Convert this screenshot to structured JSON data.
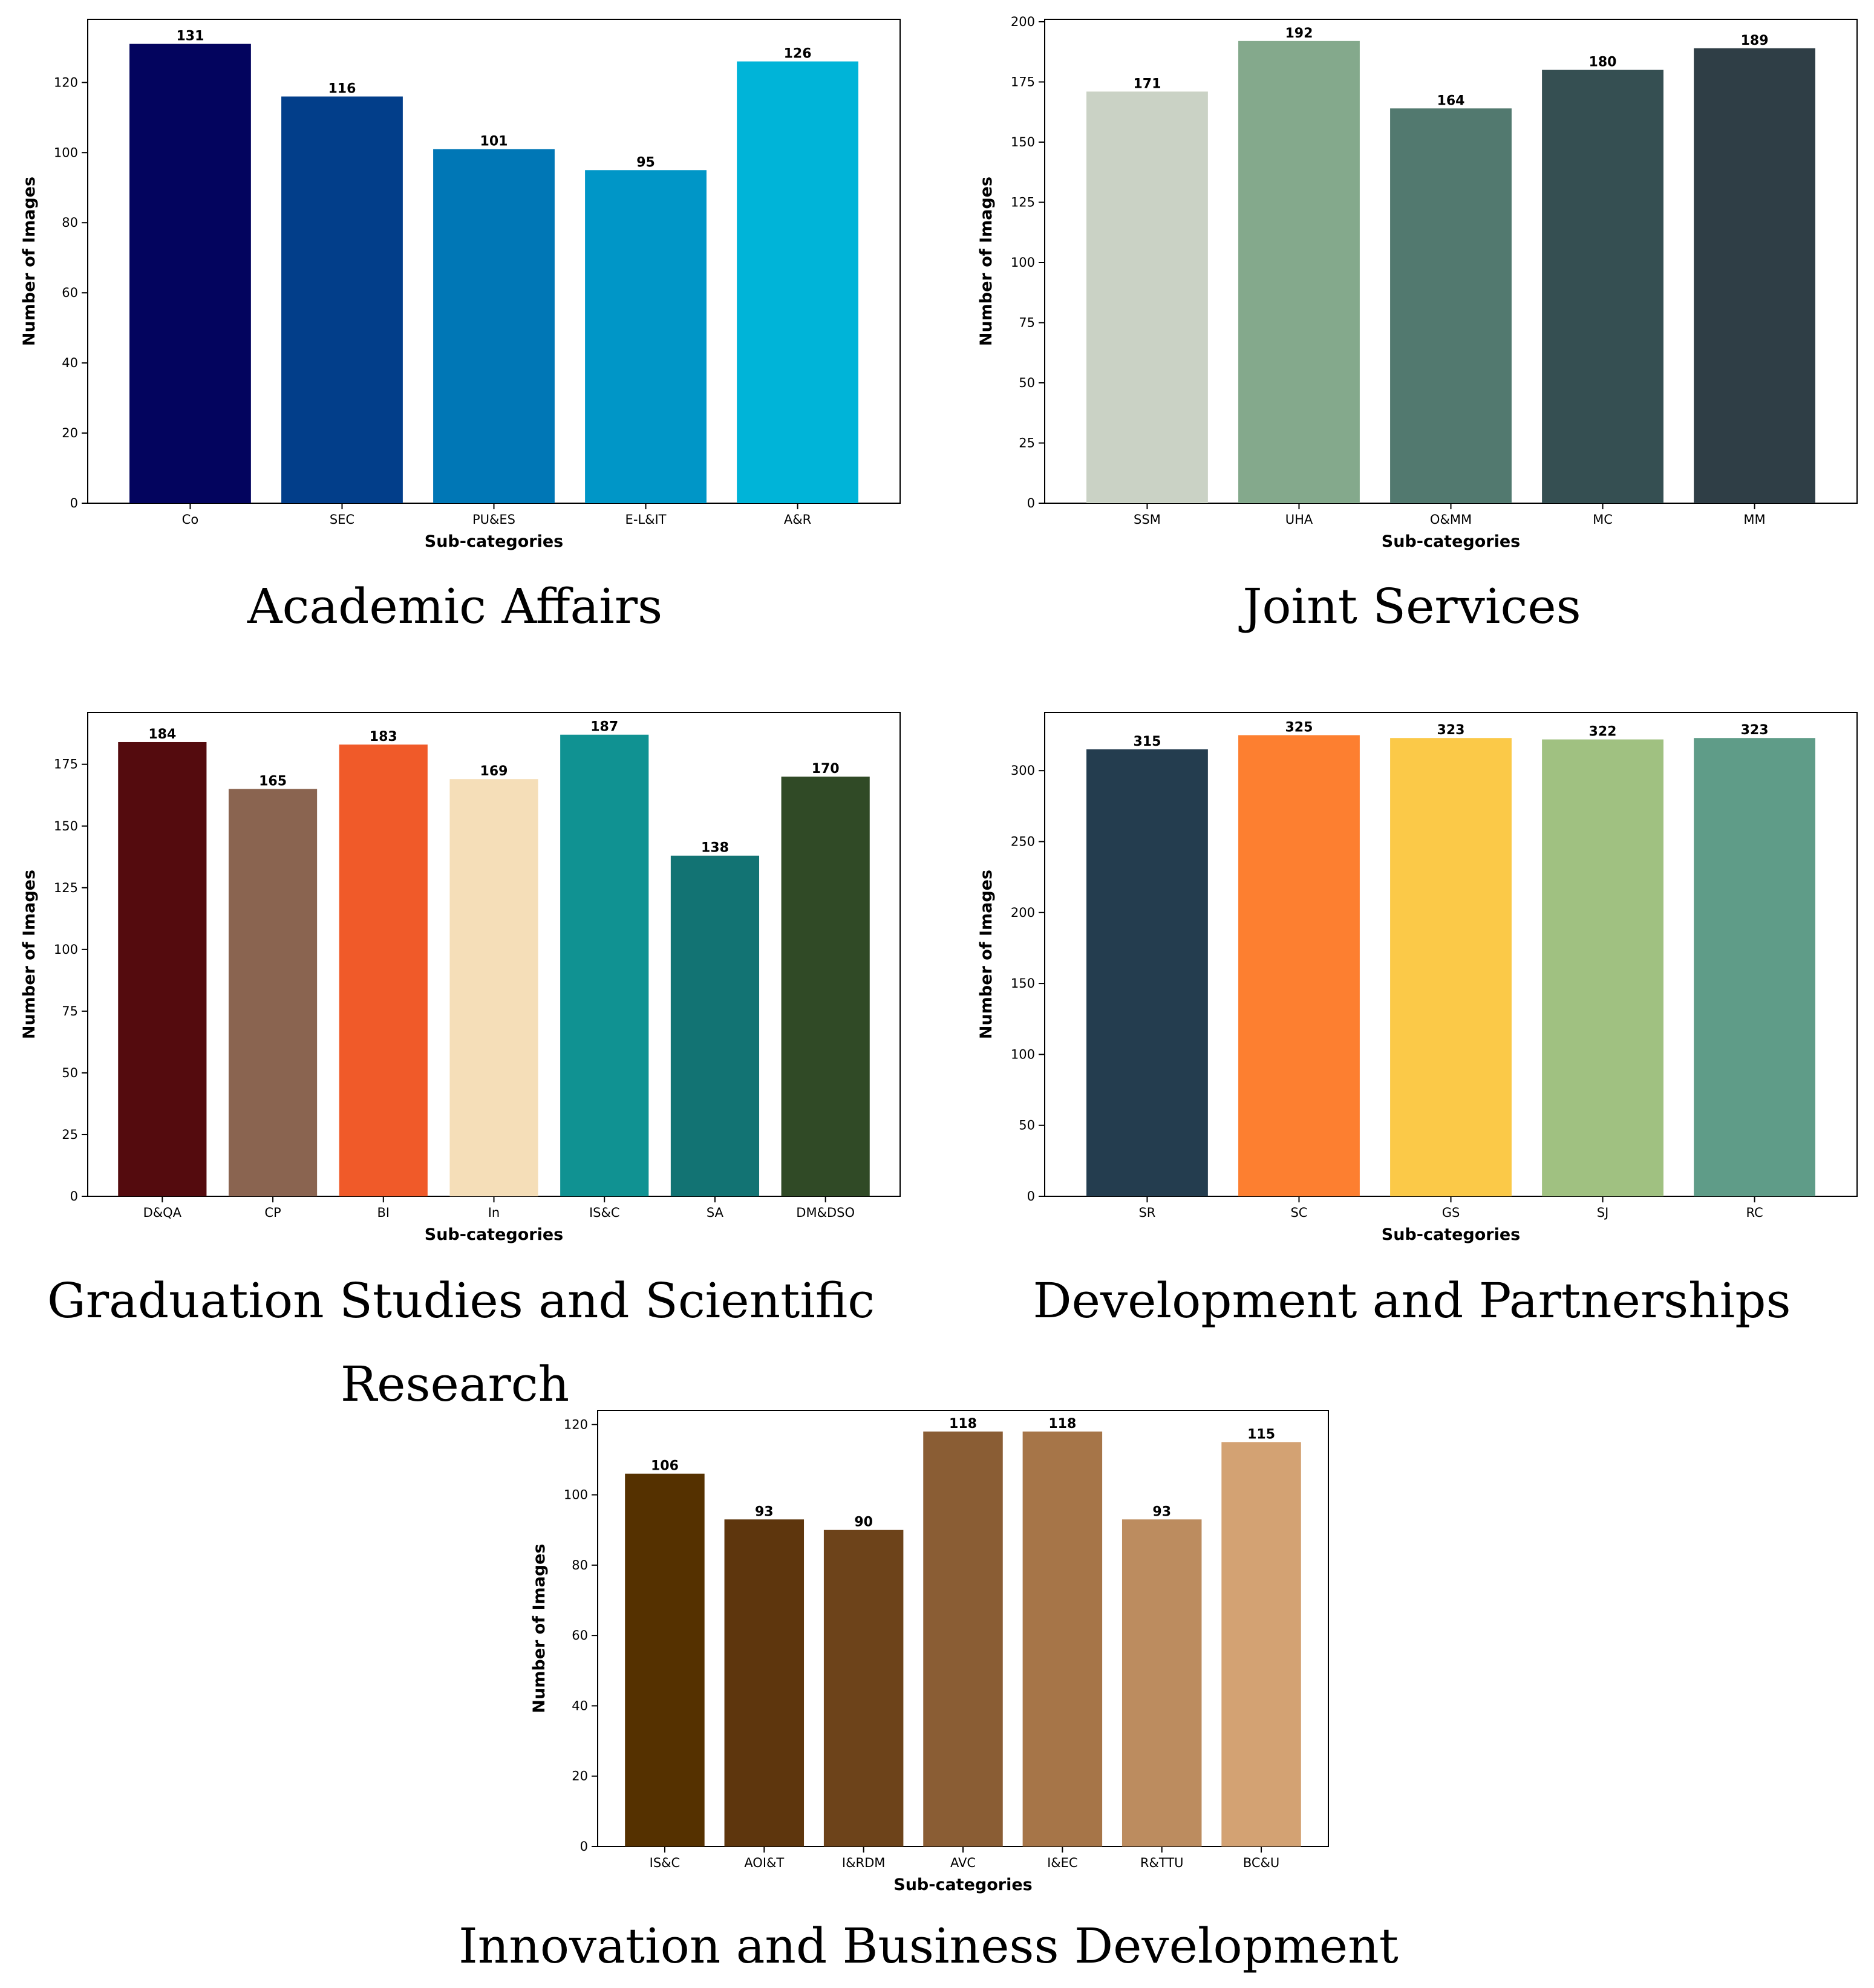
{
  "chart_data": [
    {
      "type": "bar",
      "caption": "Academic Affairs",
      "categories": [
        "Co",
        "SEC",
        "PU&ES",
        "E-L&IT",
        "A&R"
      ],
      "values": [
        131,
        116,
        101,
        95,
        126
      ],
      "colors": [
        "#03045e",
        "#023e8a",
        "#0077b6",
        "#0096c7",
        "#00b4d8"
      ],
      "xlabel": "Sub-categories",
      "ylabel": "Number of Images",
      "ylim": [
        0,
        138
      ],
      "yticks": [
        0,
        20,
        40,
        60,
        80,
        100,
        120
      ],
      "grid": false
    },
    {
      "type": "bar",
      "caption": "Joint Services",
      "categories": [
        "SSM",
        "UHA",
        "O&MM",
        "MC",
        "MM"
      ],
      "values": [
        171,
        192,
        164,
        180,
        189
      ],
      "colors": [
        "#cad2c5",
        "#84a98c",
        "#52796f",
        "#354f52",
        "#2f3e46"
      ],
      "xlabel": "Sub-categories",
      "ylabel": "Number of Images",
      "ylim": [
        0,
        201
      ],
      "yticks": [
        0,
        25,
        50,
        75,
        100,
        125,
        150,
        175,
        200
      ],
      "grid": false
    },
    {
      "type": "bar",
      "caption": "Graduation Studies and Scientific Research",
      "categories": [
        "D&QA",
        "CP",
        "BI",
        "In",
        "IS&C",
        "SA",
        "DM&DSO"
      ],
      "values": [
        184,
        165,
        183,
        169,
        187,
        138,
        170
      ],
      "colors": [
        "#540b0e",
        "#8a6450",
        "#f05a29",
        "#f5deb8",
        "#109292",
        "#127373",
        "#304a26"
      ],
      "xlabel": "Sub-categories",
      "ylabel": "Number of Images",
      "ylim": [
        0,
        196
      ],
      "yticks": [
        0,
        25,
        50,
        75,
        100,
        125,
        150,
        175
      ],
      "grid": false
    },
    {
      "type": "bar",
      "caption": "Development and Partnerships",
      "categories": [
        "SR",
        "SC",
        "GS",
        "SJ",
        "RC"
      ],
      "values": [
        315,
        325,
        323,
        322,
        323
      ],
      "colors": [
        "#243d4f",
        "#fd7f30",
        "#fbc948",
        "#a0c181",
        "#5f9c88"
      ],
      "xlabel": "Sub-categories",
      "ylabel": "Number of Images",
      "ylim": [
        0,
        341
      ],
      "yticks": [
        0,
        50,
        100,
        150,
        200,
        250,
        300
      ],
      "grid": false
    },
    {
      "type": "bar",
      "caption": "Innovation and Business Development",
      "categories": [
        "IS&C",
        "AOI&T",
        "I&RDM",
        "AVC",
        "I&EC",
        "R&TTU",
        "BC&U"
      ],
      "values": [
        106,
        93,
        90,
        118,
        118,
        93,
        115
      ],
      "colors": [
        "#553100",
        "#5e360d",
        "#6d431a",
        "#8a5d34",
        "#a67548",
        "#bc8c5f",
        "#d3a273"
      ],
      "xlabel": "Sub-categories",
      "ylabel": "Number of Images",
      "ylim": [
        0,
        124
      ],
      "yticks": [
        0,
        20,
        40,
        60,
        80,
        100,
        120
      ],
      "grid": false
    }
  ]
}
